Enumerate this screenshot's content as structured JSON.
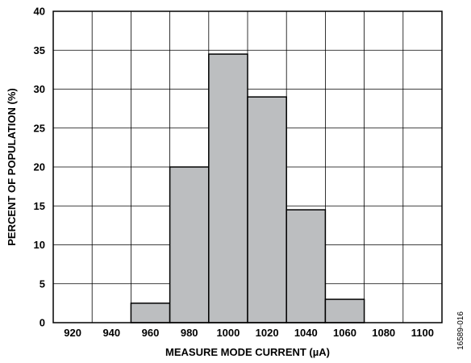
{
  "chart_data": {
    "type": "bar",
    "title": "",
    "xlabel": "MEASURE MODE CURRENT (µA)",
    "ylabel": "PERCENT OF POPULATION (%)",
    "x_ticks": [
      "920",
      "940",
      "960",
      "980",
      "1000",
      "1020",
      "1040",
      "1060",
      "1080",
      "1100"
    ],
    "categories": [
      "920",
      "940",
      "960",
      "980",
      "1000",
      "1020",
      "1040",
      "1060",
      "1080",
      "1100"
    ],
    "values": [
      0,
      0,
      2.5,
      20,
      34.5,
      29,
      14.5,
      3,
      0,
      0
    ],
    "ylim": [
      0,
      40
    ],
    "y_ticks": [
      0,
      5,
      10,
      15,
      20,
      25,
      30,
      35,
      40
    ],
    "grid": true,
    "bar_color": "#bcbec0"
  },
  "figure_id": "16589-016"
}
